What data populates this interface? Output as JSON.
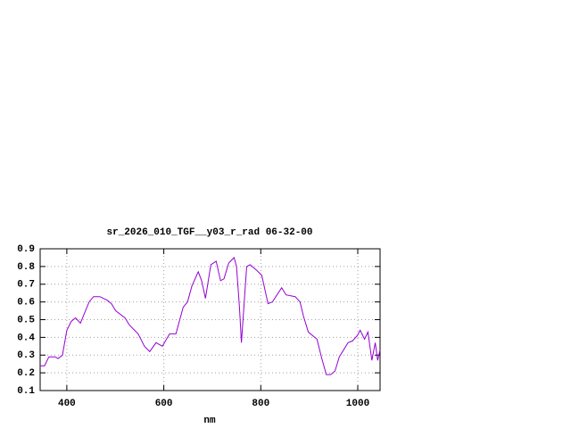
{
  "chart_data": {
    "type": "line",
    "title": "sr_2026_010_TGF__y03_r_rad 06-32-00",
    "x_label": "nm",
    "x": [
      345,
      354,
      363,
      376,
      382,
      391,
      400,
      409,
      418,
      428,
      437,
      446,
      455,
      468,
      483,
      492,
      501,
      520,
      529,
      547,
      560,
      571,
      584,
      597,
      612,
      625,
      640,
      649,
      658,
      671,
      678,
      686,
      697,
      708,
      717,
      724,
      734,
      745,
      750,
      756,
      760,
      771,
      778,
      791,
      802,
      815,
      824,
      843,
      852,
      871,
      881,
      888,
      898,
      916,
      925,
      935,
      944,
      953,
      962,
      971,
      980,
      989,
      999,
      1005,
      1014,
      1021,
      1029,
      1036,
      1041,
      1046
    ],
    "values": [
      0.24,
      0.24,
      0.29,
      0.29,
      0.28,
      0.3,
      0.44,
      0.49,
      0.51,
      0.48,
      0.54,
      0.6,
      0.63,
      0.63,
      0.61,
      0.59,
      0.55,
      0.51,
      0.47,
      0.42,
      0.35,
      0.32,
      0.37,
      0.35,
      0.42,
      0.42,
      0.57,
      0.6,
      0.69,
      0.77,
      0.72,
      0.62,
      0.81,
      0.83,
      0.72,
      0.73,
      0.82,
      0.85,
      0.8,
      0.57,
      0.37,
      0.8,
      0.81,
      0.78,
      0.75,
      0.59,
      0.6,
      0.68,
      0.64,
      0.63,
      0.6,
      0.52,
      0.43,
      0.39,
      0.29,
      0.19,
      0.19,
      0.21,
      0.29,
      0.33,
      0.37,
      0.38,
      0.41,
      0.44,
      0.39,
      0.43,
      0.27,
      0.37,
      0.27,
      0.33
    ],
    "color": "#9400d3",
    "xlim": [
      345,
      1046
    ],
    "xticks": [
      400,
      600,
      800,
      1000
    ],
    "ylim": [
      0.1,
      0.9
    ],
    "yticks": [
      0.1,
      0.2,
      0.3,
      0.4,
      0.5,
      0.6,
      0.7,
      0.8,
      0.9
    ],
    "grid": true
  }
}
